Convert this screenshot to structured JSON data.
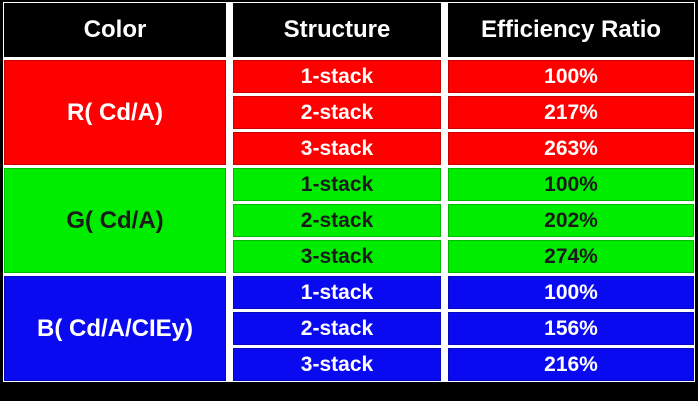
{
  "table": {
    "headers": [
      {
        "label": "Color"
      },
      {
        "label": "Structure"
      },
      {
        "label": "Efficiency Ratio"
      }
    ],
    "groups": [
      {
        "color_label": "R( Cd/A)",
        "fill": "#FF0000",
        "text_color": "#FFFFFF",
        "rows": [
          {
            "structure": "1-stack",
            "efficiency": "100%"
          },
          {
            "structure": "2-stack",
            "efficiency": "217%"
          },
          {
            "structure": "3-stack",
            "efficiency": "263%"
          }
        ]
      },
      {
        "color_label": "G( Cd/A)",
        "fill": "#00ED00",
        "text_color": "#1A1A1A",
        "rows": [
          {
            "structure": "1-stack",
            "efficiency": "100%"
          },
          {
            "structure": "2-stack",
            "efficiency": "202%"
          },
          {
            "structure": "3-stack",
            "efficiency": "274%"
          }
        ]
      },
      {
        "color_label": "B( Cd/A/CIEy)",
        "fill": "#0A0AF0",
        "text_color": "#FFFFFF",
        "rows": [
          {
            "structure": "1-stack",
            "efficiency": "100%"
          },
          {
            "structure": "2-stack",
            "efficiency": "156%"
          },
          {
            "structure": "3-stack",
            "efficiency": "216%"
          }
        ]
      }
    ],
    "colors": {
      "header_bg": "#000000",
      "header_text": "#FFFFFF",
      "grid_line": "#FFFFFF",
      "frame": "#000000"
    }
  },
  "chart_data": {
    "type": "table",
    "columns": [
      "Color",
      "Structure",
      "Efficiency Ratio"
    ],
    "rows": [
      [
        "R( Cd/A)",
        "1-stack",
        "100%"
      ],
      [
        "R( Cd/A)",
        "2-stack",
        "217%"
      ],
      [
        "R( Cd/A)",
        "3-stack",
        "263%"
      ],
      [
        "G( Cd/A)",
        "1-stack",
        "100%"
      ],
      [
        "G( Cd/A)",
        "2-stack",
        "202%"
      ],
      [
        "G( Cd/A)",
        "3-stack",
        "274%"
      ],
      [
        "B( Cd/A/CIEy)",
        "1-stack",
        "100%"
      ],
      [
        "B( Cd/A/CIEy)",
        "2-stack",
        "156%"
      ],
      [
        "B( Cd/A/CIEy)",
        "3-stack",
        "216%"
      ]
    ]
  }
}
